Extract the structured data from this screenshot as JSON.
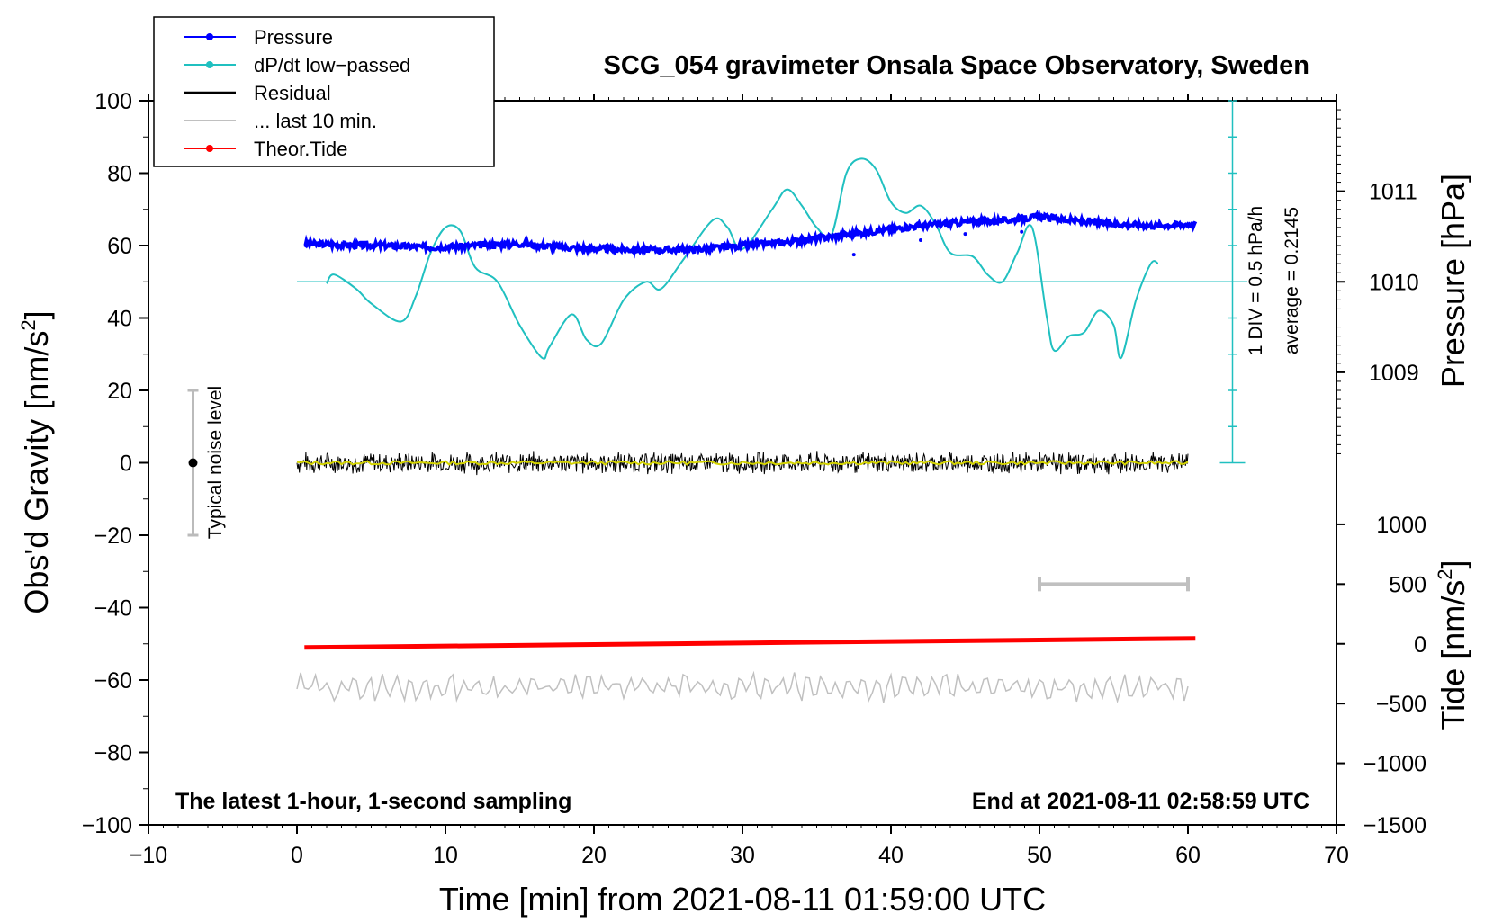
{
  "chart_data": {
    "type": "line",
    "title": "SCG_054 gravimeter Onsala Space Observatory, Sweden",
    "xlabel": "Time [min] from 2021-08-11 01:59:00 UTC",
    "ylabel_left": "Obs'd Gravity [nm/s",
    "ylabel_left_sup": "2",
    "ylabel_left_end": "]",
    "ylabel_pressure": "Pressure [hPa]",
    "ylabel_tide": "Tide [nm/s",
    "ylabel_tide_sup": "2",
    "ylabel_tide_end": "]",
    "xlim": [
      -10,
      70
    ],
    "ylim": [
      -100,
      100
    ],
    "x_ticks": [
      -10,
      0,
      10,
      20,
      30,
      40,
      50,
      60,
      70
    ],
    "x_tick_labels": [
      "−10",
      "0",
      "10",
      "20",
      "30",
      "40",
      "50",
      "60",
      "70"
    ],
    "y_ticks": [
      -100,
      -80,
      -60,
      -40,
      -20,
      0,
      20,
      40,
      60,
      80,
      100
    ],
    "y_tick_labels": [
      "−100",
      "−80",
      "−60",
      "−40",
      "−20",
      "0",
      "20",
      "40",
      "60",
      "80",
      "100"
    ],
    "pressure_ticks": [
      {
        "label": "1011",
        "y": 75
      },
      {
        "label": "1010",
        "y": 50
      },
      {
        "label": "1009",
        "y": 25
      }
    ],
    "tide_ticks": [
      {
        "label": "1000",
        "y": -17
      },
      {
        "label": "500",
        "y": -33.5
      },
      {
        "label": "0",
        "y": -50
      },
      {
        "label": "−500",
        "y": -66.5
      },
      {
        "label": "−1000",
        "y": -83
      },
      {
        "label": "−1500",
        "y": -100
      }
    ],
    "legend": [
      {
        "label": "Pressure",
        "color": "#0000ff",
        "marker": true
      },
      {
        "label": "dP/dt low−passed",
        "color": "#20c0c0",
        "marker": true
      },
      {
        "label": "Residual",
        "color": "#000000",
        "marker": false
      },
      {
        "label": "... last 10 min.",
        "color": "#c0c0c0",
        "marker": false
      },
      {
        "label": "Theor.Tide",
        "color": "#ff0000",
        "marker": true
      }
    ],
    "series": [
      {
        "name": "Pressure",
        "color": "#0000ff",
        "x": [
          0.5,
          3,
          6,
          9,
          12,
          15,
          18,
          21,
          24,
          27,
          30,
          33,
          36,
          39,
          42,
          45,
          48,
          50,
          52,
          55,
          58,
          60.5
        ],
        "values": [
          60.5,
          60.2,
          60,
          59.5,
          60,
          60.5,
          59.5,
          59,
          58.8,
          59,
          60,
          61,
          62.5,
          64,
          65.5,
          66.5,
          67,
          68,
          67,
          66,
          65.5,
          66
        ]
      },
      {
        "name": "dP/dt low-passed",
        "color": "#20c0c0",
        "x": [
          2,
          2.5,
          4,
          5,
          7,
          8,
          9,
          10,
          11,
          12,
          13.5,
          15,
          16.5,
          17,
          18.5,
          19.5,
          20.5,
          22,
          23.5,
          24.5,
          26,
          28,
          29,
          30,
          32,
          33,
          34,
          35,
          36,
          37,
          38,
          39,
          40,
          41,
          42,
          43,
          44,
          45.5,
          46.5,
          47.5,
          48.5,
          49.5,
          50.5,
          51,
          52,
          53,
          54,
          55,
          55.5,
          56.5,
          57.5,
          58
        ],
        "values": [
          49.5,
          52,
          48,
          44,
          39,
          46,
          58,
          65,
          64,
          54,
          50,
          38,
          29,
          32,
          41,
          34,
          33,
          45,
          50,
          48,
          56,
          67,
          65,
          59,
          70,
          75.5,
          71,
          65,
          63,
          80,
          84,
          81,
          72,
          69,
          71,
          66,
          58,
          57,
          52,
          50,
          58,
          65,
          40,
          31,
          35,
          36,
          42,
          38,
          29,
          45,
          55,
          55
        ]
      },
      {
        "name": "Residual",
        "color": "#000000",
        "x_range": [
          0,
          60
        ],
        "noise_amplitude": 3,
        "baseline": 0
      },
      {
        "name": "Theor.Tide",
        "color": "#ff0000",
        "x": [
          0.5,
          60.5
        ],
        "values": [
          -51,
          -48.5
        ]
      },
      {
        "name": "... last 10 min.",
        "color": "#c0c0c0",
        "x_range": [
          0,
          60
        ],
        "baseline": -62,
        "noise_amplitude": 3
      }
    ],
    "pressure_reference": {
      "y": 50,
      "x_range": [
        0,
        64
      ],
      "color": "#20c0c0"
    },
    "dpdt_scale_bar": {
      "x": 63,
      "y_range": [
        0,
        100
      ],
      "tick_step": 10
    },
    "window_bar": {
      "x_range": [
        50,
        60
      ],
      "y": -33.5,
      "color": "#c0c0c0"
    },
    "noise_bar": {
      "x": -7,
      "y_range": [
        -20,
        20
      ],
      "point": 0
    }
  },
  "annotations": {
    "noise_label": "Typical noise level",
    "div_label": "1 DIV = 0.5 hPa/h",
    "average_label": "average = 0.2145",
    "bottom_left": "The latest 1-hour, 1-second sampling",
    "bottom_right": "End at 2021-08-11 02:58:59 UTC"
  }
}
